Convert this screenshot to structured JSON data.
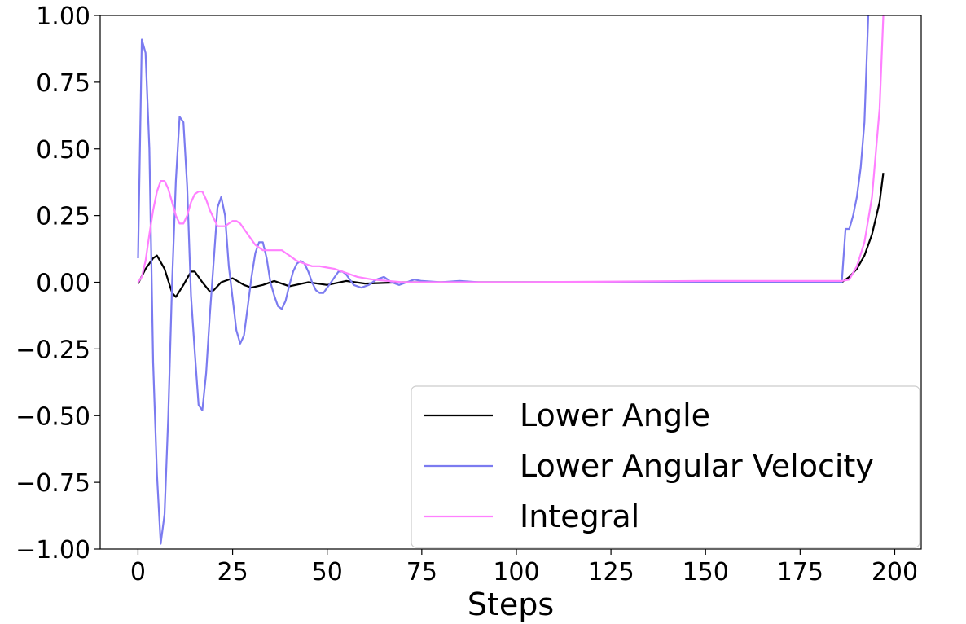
{
  "chart_data": {
    "type": "line",
    "title": "",
    "xlabel": "Steps",
    "ylabel": "",
    "xlim": [
      -10,
      207
    ],
    "ylim": [
      -1.0,
      1.0
    ],
    "x_ticks": [
      0,
      25,
      50,
      75,
      100,
      125,
      150,
      175,
      200
    ],
    "y_ticks": [
      -1.0,
      -0.75,
      -0.5,
      -0.25,
      0.0,
      0.25,
      0.5,
      0.75,
      1.0
    ],
    "x_tick_labels": [
      "0",
      "25",
      "50",
      "75",
      "100",
      "125",
      "150",
      "175",
      "200"
    ],
    "y_tick_labels": [
      "−1.00",
      "−0.75",
      "−0.50",
      "−0.25",
      "0.00",
      "0.25",
      "0.50",
      "0.75",
      "1.00"
    ],
    "grid": false,
    "legend_position": "lower right",
    "series": [
      {
        "name": "Lower Angle",
        "color": "#000000",
        "x": [
          0,
          2,
          4,
          5,
          7,
          9,
          10,
          12,
          14,
          15,
          17,
          19,
          20,
          22,
          25,
          28,
          30,
          33,
          36,
          40,
          45,
          50,
          55,
          60,
          70,
          80,
          100,
          150,
          186,
          188,
          190,
          192,
          194,
          196,
          197
        ],
        "y": [
          -0.005,
          0.05,
          0.09,
          0.1,
          0.05,
          -0.04,
          -0.055,
          -0.01,
          0.04,
          0.04,
          0.0,
          -0.035,
          -0.03,
          0.0,
          0.015,
          -0.01,
          -0.02,
          -0.01,
          0.005,
          -0.015,
          0.0,
          -0.01,
          0.005,
          -0.005,
          0.0,
          0.0,
          0.0,
          0.0,
          0.0,
          0.02,
          0.05,
          0.1,
          0.18,
          0.3,
          0.41
        ]
      },
      {
        "name": "Lower Angular Velocity",
        "color": "#7b7bf0",
        "x": [
          0,
          1,
          2,
          3,
          4,
          5,
          6,
          7,
          8,
          9,
          10,
          11,
          12,
          13,
          14,
          15,
          16,
          17,
          18,
          19,
          20,
          21,
          22,
          23,
          24,
          25,
          26,
          27,
          28,
          29,
          30,
          31,
          32,
          33,
          34,
          35,
          36,
          37,
          38,
          39,
          40,
          41,
          42,
          43,
          44,
          45,
          46,
          47,
          48,
          49,
          50,
          51,
          52,
          53,
          54,
          55,
          57,
          59,
          61,
          63,
          65,
          67,
          69,
          71,
          73,
          75,
          80,
          85,
          90,
          100,
          150,
          186,
          187,
          188,
          189,
          190,
          191,
          192,
          193
        ],
        "y": [
          0.09,
          0.91,
          0.86,
          0.5,
          -0.3,
          -0.72,
          -0.98,
          -0.87,
          -0.5,
          0.0,
          0.38,
          0.62,
          0.6,
          0.36,
          -0.05,
          -0.26,
          -0.46,
          -0.48,
          -0.34,
          -0.12,
          0.08,
          0.28,
          0.32,
          0.25,
          0.06,
          -0.06,
          -0.18,
          -0.23,
          -0.2,
          -0.09,
          0.02,
          0.11,
          0.15,
          0.15,
          0.09,
          0.0,
          -0.05,
          -0.09,
          -0.1,
          -0.07,
          -0.01,
          0.04,
          0.07,
          0.08,
          0.07,
          0.04,
          0.0,
          -0.03,
          -0.04,
          -0.04,
          -0.02,
          0.0,
          0.02,
          0.04,
          0.04,
          0.03,
          -0.01,
          -0.02,
          -0.01,
          0.01,
          0.02,
          0.0,
          -0.01,
          0.0,
          0.01,
          0.005,
          0.0,
          0.005,
          0.0,
          0.0,
          0.0,
          0.0,
          0.2,
          0.2,
          0.25,
          0.32,
          0.43,
          0.6,
          1.0
        ]
      },
      {
        "name": "Integral",
        "color": "#ff80ff",
        "x": [
          0,
          1,
          2,
          3,
          4,
          5,
          6,
          7,
          8,
          9,
          10,
          11,
          12,
          13,
          14,
          15,
          16,
          17,
          18,
          19,
          20,
          21,
          22,
          23,
          24,
          25,
          26,
          27,
          28,
          29,
          30,
          31,
          32,
          33,
          34,
          35,
          36,
          37,
          38,
          39,
          40,
          42,
          44,
          46,
          48,
          50,
          52,
          55,
          58,
          62,
          66,
          70,
          80,
          100,
          150,
          186,
          188,
          190,
          192,
          194,
          196,
          197
        ],
        "y": [
          0.0,
          0.02,
          0.08,
          0.18,
          0.27,
          0.34,
          0.38,
          0.38,
          0.35,
          0.3,
          0.25,
          0.22,
          0.22,
          0.25,
          0.3,
          0.33,
          0.34,
          0.34,
          0.31,
          0.27,
          0.24,
          0.21,
          0.21,
          0.21,
          0.22,
          0.23,
          0.23,
          0.22,
          0.2,
          0.18,
          0.16,
          0.14,
          0.13,
          0.12,
          0.12,
          0.12,
          0.12,
          0.12,
          0.12,
          0.11,
          0.1,
          0.08,
          0.07,
          0.06,
          0.06,
          0.055,
          0.05,
          0.035,
          0.02,
          0.01,
          0.005,
          0.0,
          0.0,
          0.0,
          0.005,
          0.005,
          0.01,
          0.06,
          0.15,
          0.32,
          0.65,
          1.0
        ]
      }
    ]
  }
}
